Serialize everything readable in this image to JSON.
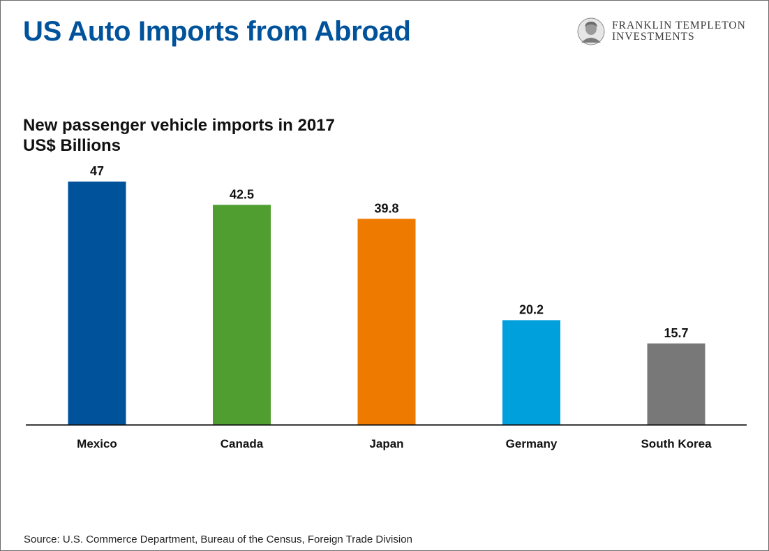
{
  "header": {
    "title": "US Auto Imports from Abroad",
    "logo_line1": "FRANKLIN TEMPLETON",
    "logo_line2": "INVESTMENTS"
  },
  "colors": {
    "title": "#00529b",
    "axis": "#111111"
  },
  "chart_data": {
    "type": "bar",
    "title": "New passenger vehicle imports in 2017",
    "subtitle": "US$ Billions",
    "xlabel": "",
    "ylabel": "",
    "categories": [
      "Mexico",
      "Canada",
      "Japan",
      "Germany",
      "South Korea"
    ],
    "values": [
      47,
      42.5,
      39.8,
      20.2,
      15.7
    ],
    "value_labels": [
      "47",
      "42.5",
      "39.8",
      "20.2",
      "15.7"
    ],
    "bar_colors": [
      "#00529b",
      "#509e2f",
      "#ef7a00",
      "#00a0dd",
      "#787878"
    ],
    "ylim": [
      0,
      47
    ],
    "grid": false,
    "legend": "none"
  },
  "footer": {
    "source": "Source: U.S. Commerce Department, Bureau of the Census, Foreign Trade Division"
  }
}
